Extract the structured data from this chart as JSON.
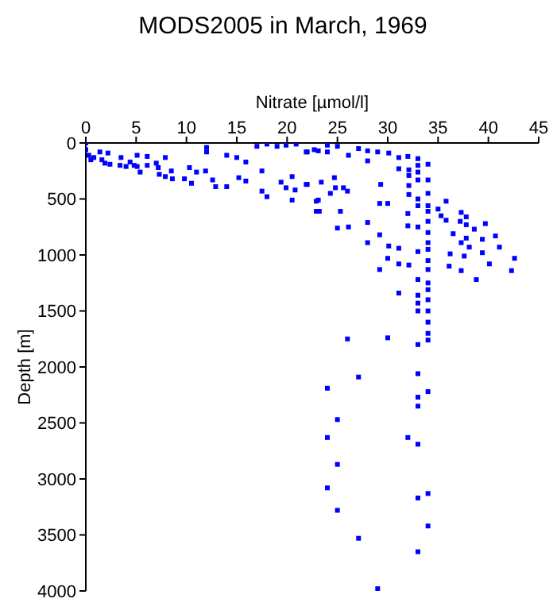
{
  "chart_data": {
    "type": "scatter",
    "title": "MODS2005 in March, 1969",
    "xlabel": "Nitrate [µmol/l]",
    "ylabel": "Depth [m]",
    "xlim": [
      0,
      45
    ],
    "xticks": [
      0,
      5,
      10,
      15,
      20,
      25,
      30,
      35,
      40,
      45
    ],
    "ylim": [
      4000,
      0
    ],
    "yticks": [
      0,
      500,
      1000,
      1500,
      2000,
      2500,
      3000,
      3500,
      4000
    ],
    "grid": false,
    "legend": false,
    "marker": "square",
    "series": [
      {
        "color": "#0000ff",
        "x": [
          0,
          0,
          0.3,
          0.5,
          0.8,
          1.4,
          2.2,
          1.6,
          1.9,
          2.4,
          3.4,
          3.5,
          4.0,
          4.4,
          4.8,
          5.1,
          5.1,
          5.4,
          6.1,
          6.1,
          7.0,
          7.2,
          7.3,
          7.9,
          7.9,
          8.5,
          8.6,
          9.8,
          10.3,
          10.5,
          11.0,
          12,
          12,
          11.9,
          12.6,
          12.9,
          14.0,
          14.0,
          15,
          15.2,
          15.9,
          15.9,
          17,
          17.5,
          17.5,
          18,
          18,
          19,
          19.4,
          19.9,
          19.9,
          20.5,
          20.8,
          20.5,
          20.9,
          21.9,
          21.9,
          22.7,
          22.9,
          22.9,
          22.0,
          23.1,
          24,
          24,
          25,
          26.1,
          27.1,
          28,
          28,
          29,
          30.1,
          31.1,
          31.1,
          32,
          32.1,
          32.1,
          32.1,
          32.1,
          33,
          33,
          33,
          33,
          34,
          22,
          23.4,
          24.7,
          24.8,
          25.6,
          26,
          24.3,
          23.1,
          29.3,
          29.2,
          30,
          33,
          33,
          34,
          34,
          34,
          35.8,
          23.2,
          25.3,
          35,
          35.3,
          37.3,
          37.8,
          37.2,
          35.8,
          32,
          32,
          33,
          34,
          34,
          34,
          34,
          37.8,
          37.8,
          39.7,
          38.6,
          36.5,
          39.4,
          40.7,
          41.1,
          42.6,
          42.3,
          40.1,
          39.4,
          38.8,
          37.3,
          37.6,
          38.1,
          36.2,
          36.1,
          37.3,
          25,
          26.1,
          28,
          28,
          29.2,
          30.1,
          31.1,
          30,
          29.2,
          31.1,
          32.1,
          33,
          33,
          31.1,
          34,
          34,
          34,
          34,
          34,
          33,
          33,
          33,
          34,
          34,
          34,
          34,
          26,
          30,
          33,
          34,
          27.1,
          24,
          33,
          34,
          33,
          33,
          25,
          24,
          32,
          33,
          25,
          24,
          33,
          34,
          25,
          34,
          27.1,
          33,
          29
        ],
        "values": [
          0,
          60,
          110,
          150,
          130,
          80,
          90,
          150,
          180,
          190,
          200,
          130,
          210,
          170,
          200,
          110,
          210,
          260,
          120,
          200,
          180,
          220,
          280,
          300,
          130,
          250,
          320,
          320,
          220,
          360,
          260,
          40,
          80,
          250,
          330,
          390,
          390,
          110,
          130,
          310,
          170,
          340,
          30,
          250,
          430,
          10,
          480,
          30,
          350,
          20,
          400,
          300,
          420,
          510,
          10,
          80,
          370,
          60,
          520,
          610,
          80,
          70,
          20,
          80,
          30,
          110,
          50,
          70,
          160,
          80,
          90,
          130,
          230,
          120,
          240,
          290,
          380,
          460,
          140,
          200,
          260,
          330,
          190,
          370,
          350,
          310,
          400,
          400,
          430,
          450,
          510,
          370,
          540,
          540,
          500,
          560,
          330,
          450,
          560,
          520,
          610,
          610,
          590,
          650,
          620,
          660,
          700,
          690,
          630,
          740,
          750,
          610,
          700,
          800,
          890,
          730,
          850,
          720,
          770,
          810,
          860,
          830,
          930,
          1030,
          1140,
          1080,
          980,
          1220,
          1140,
          1010,
          930,
          990,
          1100,
          890,
          760,
          750,
          710,
          890,
          820,
          920,
          940,
          1030,
          1130,
          1080,
          1090,
          970,
          1220,
          1340,
          950,
          1050,
          1130,
          1250,
          1310,
          1360,
          1430,
          1500,
          1400,
          1500,
          1600,
          1700,
          1750,
          1740,
          1800,
          1760,
          2090,
          2190,
          2060,
          2220,
          2270,
          2350,
          2470,
          2630,
          2630,
          2690,
          2870,
          3080,
          3170,
          3130,
          3280,
          3420,
          3530,
          3650,
          3980
        ]
      }
    ]
  }
}
